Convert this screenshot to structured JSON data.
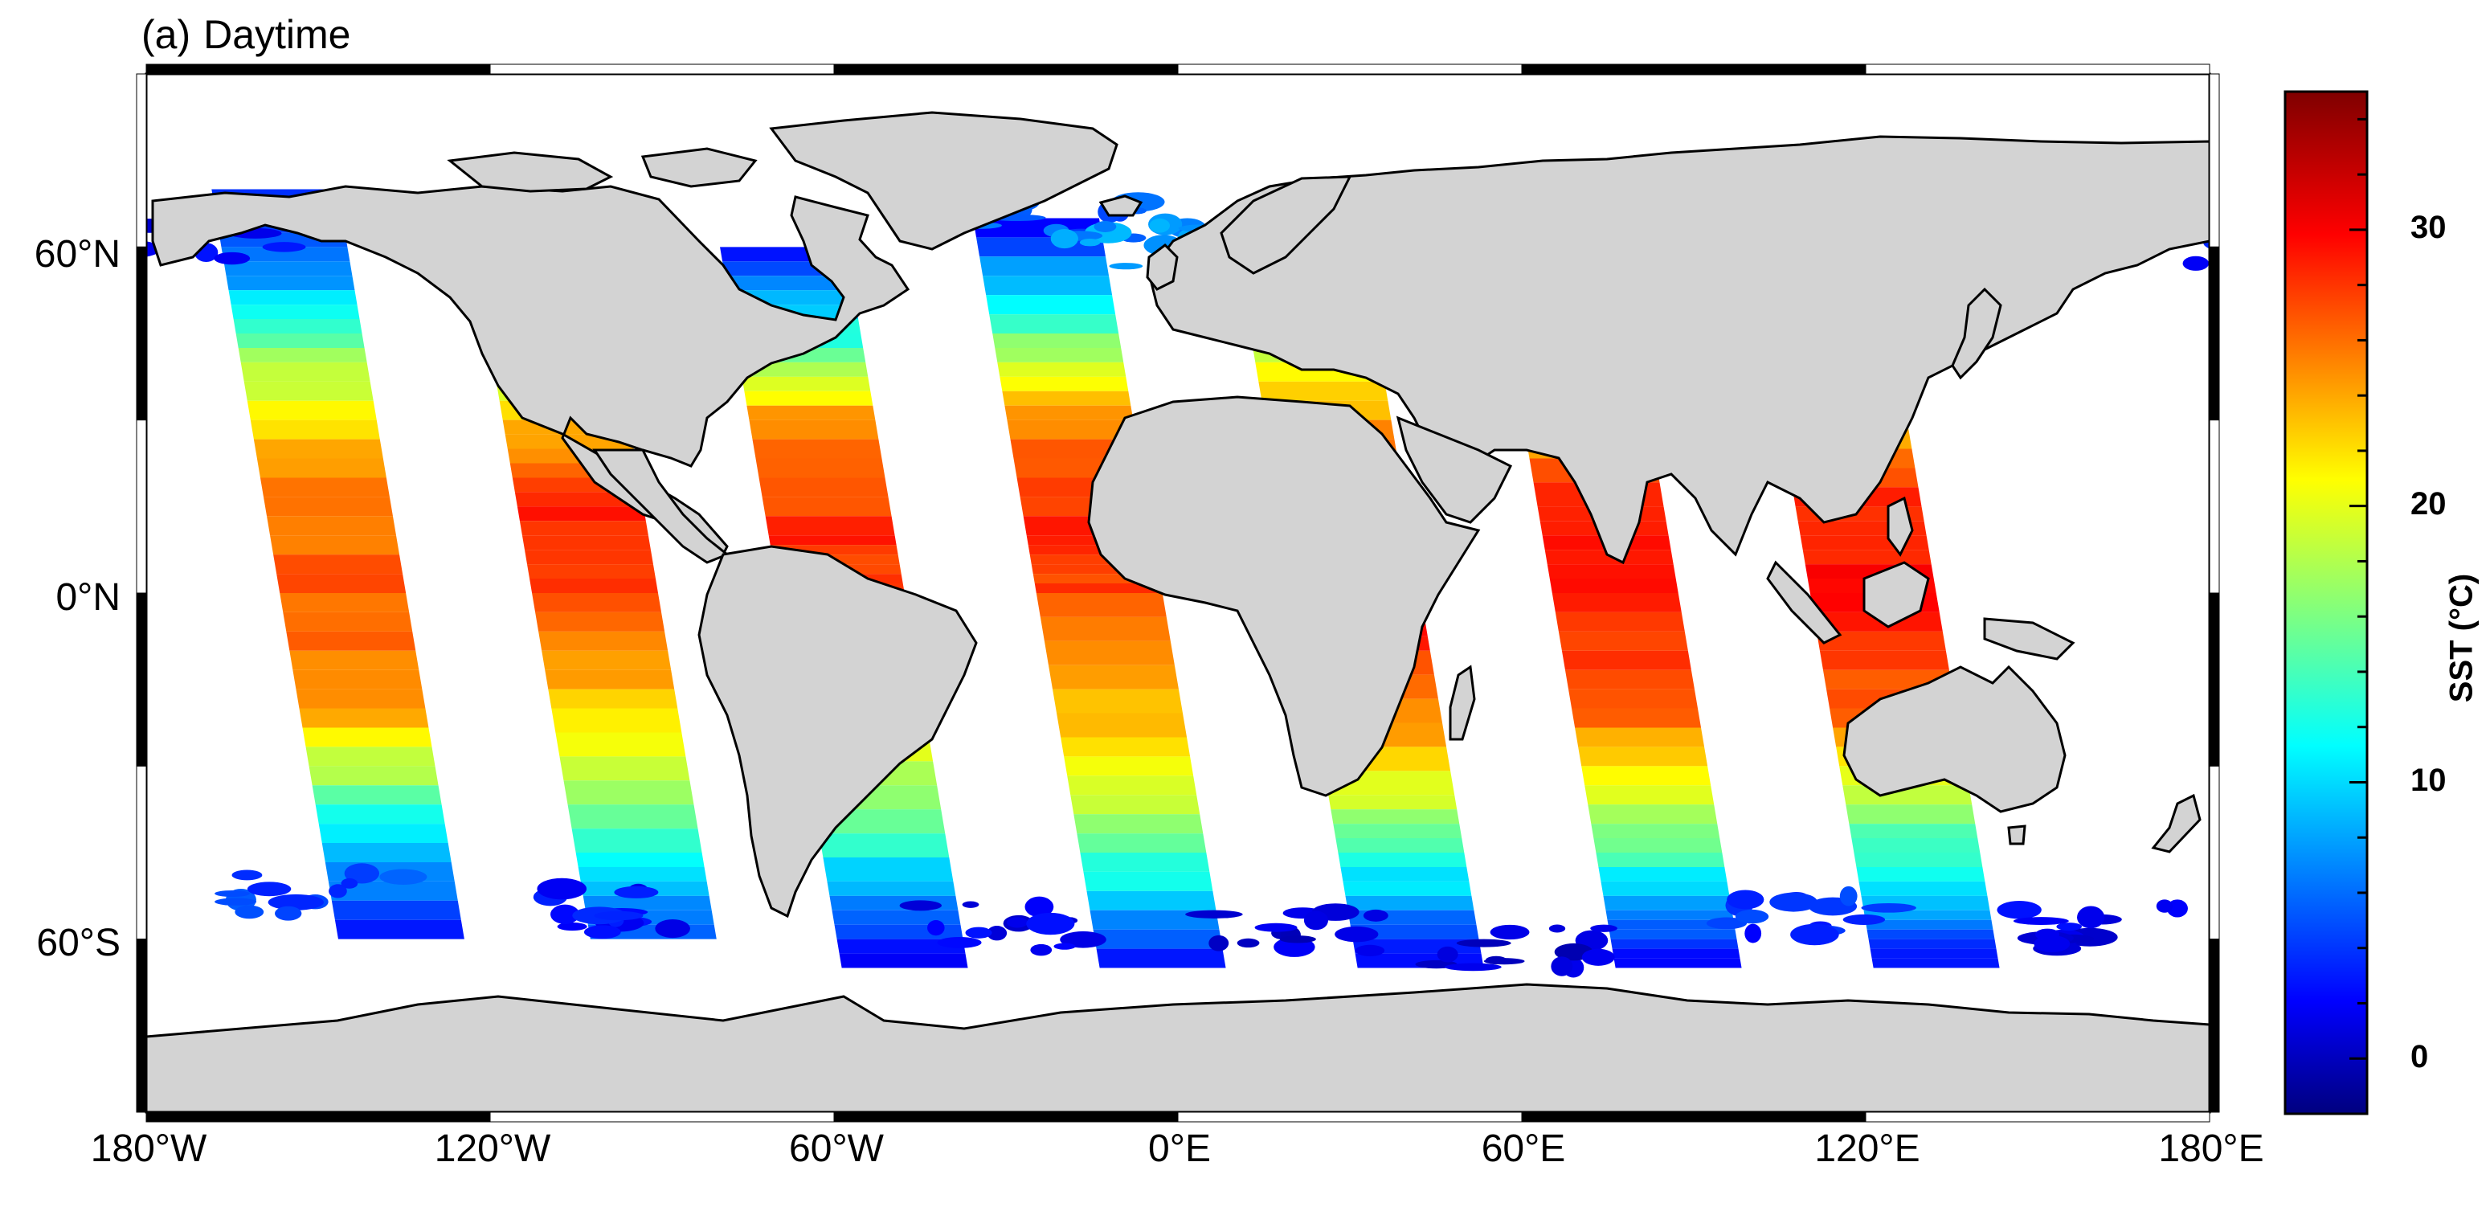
{
  "panel": {
    "tag": "(a)",
    "title": "Daytime"
  },
  "map": {
    "projection": "equirectangular",
    "land_color": "#d3d3d3",
    "coastline_color": "#000000",
    "ocean_no_data_color": "#ffffff",
    "lat_labels": [
      "60°N",
      "0°N",
      "60°S"
    ],
    "lon_labels": [
      "180°W",
      "120°W",
      "60°W",
      "0°E",
      "60°E",
      "120°E",
      "180°E"
    ],
    "swaths": [
      {
        "name": "swath-1",
        "sst_band": [
          [
            70,
            4
          ],
          [
            55,
            8
          ],
          [
            40,
            18
          ],
          [
            20,
            26
          ],
          [
            0,
            27
          ],
          [
            -20,
            25
          ],
          [
            -40,
            12
          ],
          [
            -60,
            3
          ]
        ]
      },
      {
        "name": "swath-2",
        "sst_band": [
          [
            65,
            4
          ],
          [
            50,
            10
          ],
          [
            30,
            24
          ],
          [
            15,
            29
          ],
          [
            0,
            28
          ],
          [
            -20,
            23
          ],
          [
            -45,
            12
          ],
          [
            -60,
            6
          ]
        ]
      },
      {
        "name": "swath-3",
        "sst_band": [
          [
            60,
            3
          ],
          [
            45,
            13
          ],
          [
            30,
            25
          ],
          [
            10,
            29
          ],
          [
            0,
            28
          ],
          [
            -25,
            22
          ],
          [
            -50,
            10
          ],
          [
            -65,
            2
          ]
        ]
      },
      {
        "name": "swath-4",
        "sst_band": [
          [
            65,
            2
          ],
          [
            45,
            16
          ],
          [
            30,
            26
          ],
          [
            10,
            29
          ],
          [
            0,
            28
          ],
          [
            -25,
            23
          ],
          [
            -45,
            15
          ],
          [
            -65,
            2
          ]
        ]
      },
      {
        "name": "swath-5",
        "sst_band": [
          [
            60,
            3
          ],
          [
            40,
            20
          ],
          [
            20,
            28
          ],
          [
            5,
            30
          ],
          [
            -10,
            29
          ],
          [
            -35,
            20
          ],
          [
            -50,
            11
          ],
          [
            -65,
            2
          ]
        ]
      },
      {
        "name": "swath-6",
        "sst_band": [
          [
            55,
            5
          ],
          [
            40,
            17
          ],
          [
            15,
            30
          ],
          [
            0,
            30
          ],
          [
            -20,
            27
          ],
          [
            -40,
            18
          ],
          [
            -55,
            8
          ],
          [
            -65,
            2
          ]
        ]
      },
      {
        "name": "swath-7",
        "sst_band": [
          [
            60,
            6
          ],
          [
            35,
            22
          ],
          [
            15,
            29
          ],
          [
            0,
            30
          ],
          [
            -20,
            27
          ],
          [
            -40,
            16
          ],
          [
            -55,
            9
          ],
          [
            -65,
            2
          ]
        ]
      }
    ],
    "scatter_patches": [
      {
        "lon": -150,
        "lat": -52,
        "sst": 5
      },
      {
        "lon": -95,
        "lat": -55,
        "sst": 3
      },
      {
        "lon": -30,
        "lat": -58,
        "sst": 2
      },
      {
        "lon": 20,
        "lat": -58,
        "sst": 1
      },
      {
        "lon": 60,
        "lat": -62,
        "sst": 1
      },
      {
        "lon": 110,
        "lat": -56,
        "sst": 4
      },
      {
        "lon": 160,
        "lat": -58,
        "sst": 2
      },
      {
        "lon": -20,
        "lat": 65,
        "sst": 6
      },
      {
        "lon": -5,
        "lat": 60,
        "sst": 8
      },
      {
        "lon": 170,
        "lat": 60,
        "sst": 3
      },
      {
        "lon": -170,
        "lat": 62,
        "sst": 2
      }
    ]
  },
  "colorbar": {
    "title": "SST (°C)",
    "range": [
      -2,
      35
    ],
    "ticks": [
      "30",
      "20",
      "10",
      "0"
    ],
    "tick_values": [
      30,
      20,
      10,
      0
    ],
    "colormap": "jet"
  }
}
